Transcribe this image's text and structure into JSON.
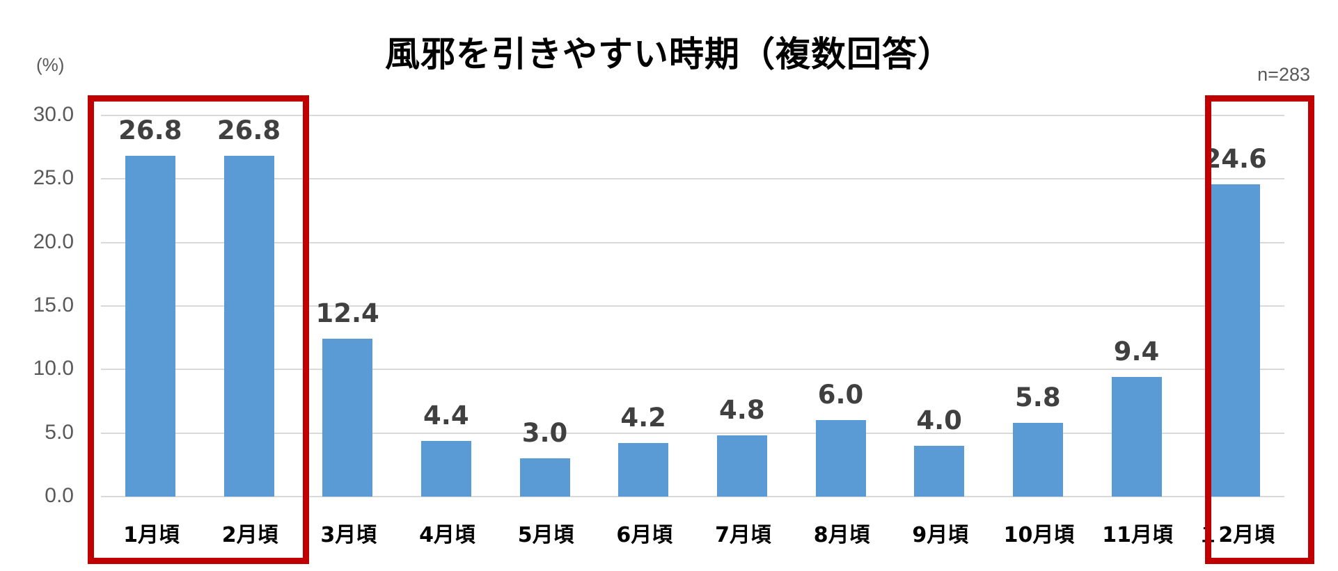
{
  "chart_data": {
    "type": "bar",
    "title": "風邪を引きやすい時期（複数回答）",
    "ylabel": "(%)",
    "xlabel": "",
    "sample_size": "n=283",
    "ylim": [
      0,
      30
    ],
    "yticks": [
      "0.0",
      "5.0",
      "10.0",
      "15.0",
      "20.0",
      "25.0",
      "30.0"
    ],
    "grid": true,
    "legend": null,
    "categories": [
      "1月頃",
      "2月頃",
      "3月頃",
      "4月頃",
      "5月頃",
      "6月頃",
      "7月頃",
      "8月頃",
      "9月頃",
      "10月頃",
      "11月頃",
      "１2月頃"
    ],
    "values": [
      26.8,
      26.8,
      12.4,
      4.4,
      3.0,
      4.2,
      4.8,
      6.0,
      4.0,
      5.8,
      9.4,
      24.6
    ],
    "value_labels": [
      "26.8",
      "26.8",
      "12.4",
      "4.4",
      "3.0",
      "4.2",
      "4.8",
      "6.0",
      "4.0",
      "5.8",
      "9.4",
      "24.6"
    ],
    "highlighted_groups": [
      [
        "1月頃",
        "2月頃"
      ],
      [
        "１2月頃"
      ]
    ],
    "colors": {
      "bar": "#5B9BD5",
      "highlight_box": "#C00000",
      "gridline": "#D9D9D9",
      "value_label": "#404040",
      "axis_text": "#595959"
    }
  },
  "header": {
    "title": "風邪を引きやすい時期（複数回答）",
    "unit": "(%)",
    "n": "n=283"
  }
}
